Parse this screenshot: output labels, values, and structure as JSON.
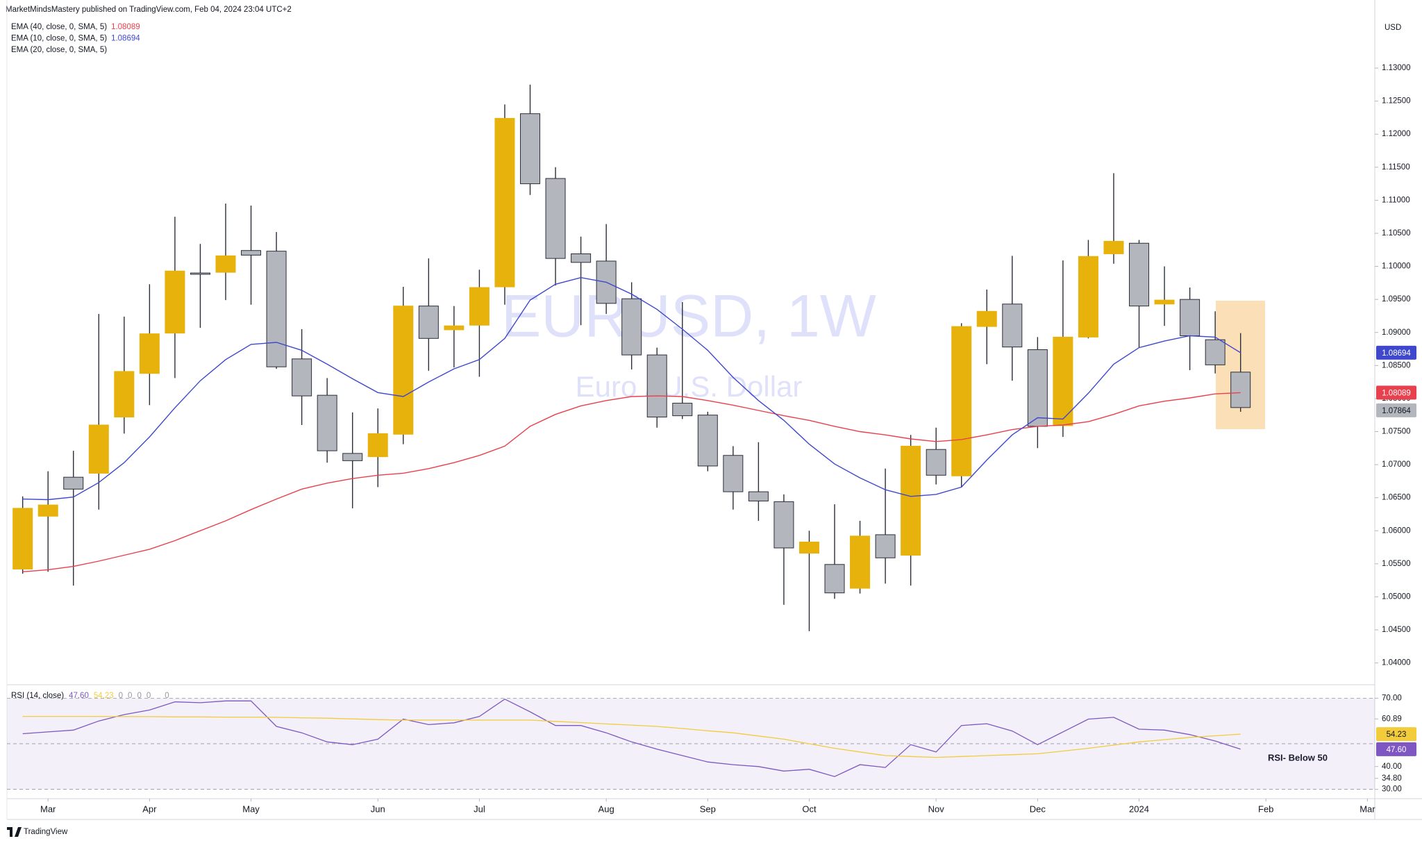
{
  "header": {
    "publisher": "MarketMindsMastery published on TradingView.com, Feb 04, 2024 23:04 UTC+2",
    "logo": "TradingView"
  },
  "chart_data": [
    {
      "type": "candlestick",
      "title": "EURUSD, 1W",
      "subtitle": "Euro / U.S. Dollar",
      "currency": "USD",
      "xlim": [
        -0.62,
        53.29
      ],
      "ylim": [
        1.0367,
        1.1382
      ],
      "xticks": [
        {
          "value": 1,
          "label": "Mar"
        },
        {
          "value": 5,
          "label": "Apr"
        },
        {
          "value": 9,
          "label": "May"
        },
        {
          "value": 14,
          "label": "Jun"
        },
        {
          "value": 18,
          "label": "Jul"
        },
        {
          "value": 23,
          "label": "Aug"
        },
        {
          "value": 27,
          "label": "Sep"
        },
        {
          "value": 31,
          "label": "Oct"
        },
        {
          "value": 36,
          "label": "Nov"
        },
        {
          "value": 40,
          "label": "Dec"
        },
        {
          "value": 44,
          "label": "2024"
        },
        {
          "value": 49,
          "label": "Feb"
        },
        {
          "value": 53,
          "label": "Mar"
        }
      ],
      "yticks": [
        {
          "value": 1.04,
          "label": "1.04000"
        },
        {
          "value": 1.045,
          "label": "1.04500"
        },
        {
          "value": 1.05,
          "label": "1.05000"
        },
        {
          "value": 1.055,
          "label": "1.05500"
        },
        {
          "value": 1.06,
          "label": "1.06000"
        },
        {
          "value": 1.065,
          "label": "1.06500"
        },
        {
          "value": 1.07,
          "label": "1.07000"
        },
        {
          "value": 1.075,
          "label": "1.07500"
        },
        {
          "value": 1.08,
          "label": "1.08000"
        },
        {
          "value": 1.085,
          "label": "1.08500"
        },
        {
          "value": 1.09,
          "label": "1.09000"
        },
        {
          "value": 1.095,
          "label": "1.09500"
        },
        {
          "value": 1.1,
          "label": "1.10000"
        },
        {
          "value": 1.105,
          "label": "1.10500"
        },
        {
          "value": 1.11,
          "label": "1.11000"
        },
        {
          "value": 1.115,
          "label": "1.11500"
        },
        {
          "value": 1.12,
          "label": "1.12000"
        },
        {
          "value": 1.125,
          "label": "1.12500"
        },
        {
          "value": 1.13,
          "label": "1.13000"
        }
      ],
      "up_color": "#e8b20c",
      "down_color": "#b4b6be",
      "last_color": "#b4b6be",
      "open": [
        1.0542,
        1.0622,
        1.0681,
        1.0687,
        1.0772,
        1.0838,
        1.0899,
        1.099,
        1.0991,
        1.1024,
        1.1023,
        1.086,
        1.0805,
        1.0717,
        1.0712,
        1.0746,
        1.094,
        1.0904,
        1.0911,
        1.0969,
        1.1231,
        1.1133,
        1.1019,
        1.1008,
        1.0951,
        1.0866,
        1.0793,
        1.0775,
        1.0714,
        1.0659,
        1.0644,
        1.0566,
        1.0549,
        1.0513,
        1.0594,
        1.0563,
        1.0723,
        1.0683,
        1.0909,
        1.0943,
        1.0874,
        1.0759,
        1.0893,
        1.1019,
        1.1035,
        1.0943,
        1.095,
        1.0889,
        1.084
      ],
      "high": [
        1.0652,
        1.069,
        1.0721,
        1.0928,
        1.0924,
        1.0973,
        1.1075,
        1.1034,
        1.1095,
        1.1092,
        1.1052,
        1.0905,
        1.0831,
        1.0779,
        1.0785,
        1.0969,
        1.1012,
        1.094,
        1.0995,
        1.1245,
        1.1275,
        1.115,
        1.1045,
        1.1064,
        1.0976,
        1.0877,
        1.0946,
        1.078,
        1.0728,
        1.0734,
        1.0655,
        1.06,
        1.064,
        1.0615,
        1.0694,
        1.0745,
        1.0756,
        1.0914,
        1.0965,
        1.1016,
        1.0893,
        1.1009,
        1.104,
        1.1141,
        1.104,
        1.1,
        1.0968,
        1.0932,
        1.0899
      ],
      "low": [
        1.0535,
        1.0538,
        1.0517,
        1.0632,
        1.0747,
        1.079,
        1.0831,
        1.0907,
        1.0949,
        1.0942,
        1.0845,
        1.076,
        1.0703,
        1.0634,
        1.0666,
        1.0731,
        1.0842,
        1.0847,
        1.0833,
        1.0942,
        1.1108,
        1.0971,
        1.0911,
        1.0928,
        1.0844,
        1.0756,
        1.0769,
        1.069,
        1.0632,
        1.0615,
        1.0488,
        1.0448,
        1.0497,
        1.0505,
        1.052,
        1.0517,
        1.067,
        1.0666,
        1.0852,
        1.0827,
        1.0725,
        1.0742,
        1.0891,
        1.1004,
        1.0877,
        1.091,
        1.0843,
        1.0838,
        1.078
      ],
      "close": [
        1.0634,
        1.0639,
        1.0663,
        1.076,
        1.0841,
        1.0898,
        1.0993,
        1.0988,
        1.1016,
        1.1017,
        1.0848,
        1.0804,
        1.0721,
        1.0706,
        1.0747,
        1.094,
        1.0891,
        1.091,
        1.0968,
        1.1224,
        1.1125,
        1.1012,
        1.1006,
        1.0944,
        1.0866,
        1.0772,
        1.0774,
        1.0698,
        1.0659,
        1.0645,
        1.0574,
        1.0583,
        1.0506,
        1.0592,
        1.0559,
        1.0728,
        1.0684,
        1.0909,
        1.0932,
        1.0878,
        1.0758,
        1.0893,
        1.1015,
        1.1038,
        1.094,
        1.0949,
        1.0895,
        1.0851,
        1.07864
      ],
      "series": [
        {
          "name": "EMA (40, close, 0, SMA, 5)",
          "color": "#e8404c",
          "values": [
            1.0538,
            1.0541,
            1.0546,
            1.0554,
            1.0563,
            1.0572,
            1.0585,
            1.06,
            1.0615,
            1.0632,
            1.0648,
            1.0663,
            1.0672,
            1.0679,
            1.0684,
            1.0687,
            1.0694,
            1.0703,
            1.0714,
            1.0728,
            1.0758,
            1.0776,
            1.0789,
            1.0797,
            1.0803,
            1.0804,
            1.0803,
            1.0797,
            1.079,
            1.0782,
            1.0774,
            1.0767,
            1.0758,
            1.075,
            1.0745,
            1.0739,
            1.0735,
            1.0738,
            1.0745,
            1.0753,
            1.0758,
            1.076,
            1.0765,
            1.0776,
            1.0789,
            1.0796,
            1.0801,
            1.0807,
            1.08089
          ]
        },
        {
          "name": "EMA (10, close, 0, SMA, 5)",
          "color": "#3f48cc",
          "values": [
            1.0648,
            1.0647,
            1.0651,
            1.0673,
            1.0703,
            1.0742,
            1.0786,
            1.0827,
            1.0859,
            1.0882,
            1.0885,
            1.0873,
            1.0852,
            1.083,
            1.0809,
            1.0803,
            1.0825,
            1.0845,
            1.0859,
            1.0891,
            1.0949,
            1.0973,
            1.0983,
            1.0976,
            1.0958,
            1.0935,
            1.0905,
            1.0873,
            1.0832,
            1.0797,
            1.0767,
            1.0731,
            1.0701,
            1.068,
            1.0662,
            1.0652,
            1.0655,
            1.0666,
            1.0707,
            1.0745,
            1.0771,
            1.0769,
            1.0808,
            1.0852,
            1.0877,
            1.0887,
            1.0895,
            1.0893,
            1.08694
          ]
        },
        {
          "name": "EMA (20, close, 0, SMA, 5)",
          "color": "#2962ff"
        }
      ]
    },
    {
      "type": "line",
      "title": "RSI (14, close)",
      "legend_extras": [
        "0",
        "0",
        "0",
        "0",
        "0"
      ],
      "annotation": "RSI- Below 50",
      "xlim": [
        -0.62,
        53.29
      ],
      "ylim": [
        25.9,
        75.6
      ],
      "levels": [
        70,
        50,
        30
      ],
      "yticks": [
        {
          "value": 70,
          "label": "70.00"
        },
        {
          "value": 60.89,
          "label": "60.89"
        },
        {
          "value": 40,
          "label": "40.00"
        },
        {
          "value": 34.8,
          "label": "34.80"
        },
        {
          "value": 30,
          "label": "30.00"
        }
      ],
      "series": [
        {
          "color": "#7e57c2",
          "values": [
            54.4,
            55.2,
            56.0,
            60.0,
            62.8,
            64.8,
            68.4,
            68.0,
            68.8,
            68.8,
            57.6,
            54.8,
            50.8,
            49.6,
            52.0,
            60.8,
            58.4,
            59.2,
            62.0,
            69.6,
            64.0,
            58.0,
            58.0,
            54.8,
            50.8,
            47.6,
            44.8,
            42.0,
            40.8,
            40.0,
            38.0,
            38.8,
            35.6,
            40.8,
            39.6,
            49.6,
            46.4,
            58.0,
            58.8,
            55.6,
            49.6,
            55.2,
            60.8,
            61.6,
            56.4,
            56.0,
            54.0,
            51.2,
            47.6
          ],
          "value_labels": [
            null,
            null,
            null,
            null,
            null,
            null,
            null,
            null,
            null,
            null,
            null,
            null,
            null,
            null,
            null,
            null,
            null,
            null,
            null,
            null,
            null,
            null,
            null,
            null,
            null,
            null,
            null,
            null,
            null,
            null,
            null,
            null,
            null,
            null,
            null,
            null,
            null,
            null,
            null,
            null,
            null,
            null,
            null,
            null,
            null,
            null,
            null,
            null,
            "47.60"
          ]
        },
        {
          "color": "#f2cc3a",
          "values": [
            62.0,
            62.0,
            62.0,
            62.0,
            61.9,
            61.9,
            61.8,
            61.8,
            61.7,
            61.7,
            61.6,
            61.4,
            61.2,
            60.9,
            60.6,
            60.4,
            60.4,
            60.4,
            60.4,
            60.4,
            60.4,
            59.8,
            59.3,
            58.7,
            58.2,
            57.6,
            56.7,
            55.7,
            54.8,
            53.4,
            52.0,
            50.0,
            48.0,
            46.4,
            44.8,
            44.4,
            44.0,
            44.4,
            44.8,
            45.2,
            45.6,
            46.8,
            48.0,
            49.4,
            50.8,
            51.8,
            52.8,
            53.5,
            54.23
          ]
        }
      ]
    }
  ]
}
